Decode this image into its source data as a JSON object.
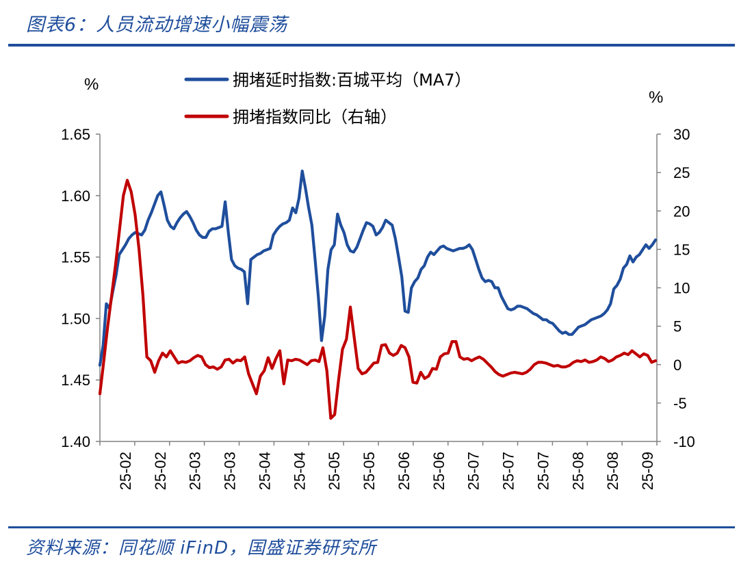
{
  "header": {
    "title": "图表6：人员流动增速小幅震荡"
  },
  "footer": {
    "source": "资料来源：同花顺 iFinD，国盛证券研究所"
  },
  "chart_data": {
    "type": "line",
    "left_unit": "%",
    "right_unit": "%",
    "ylim_left": [
      1.4,
      1.65
    ],
    "ylim_right": [
      -10,
      30
    ],
    "yticks_left": [
      "1.65",
      "1.60",
      "1.55",
      "1.50",
      "1.45",
      "1.40"
    ],
    "yticks_right": [
      "30",
      "25",
      "20",
      "15",
      "10",
      "5",
      "0",
      "-5",
      "-10"
    ],
    "xticks": [
      "25-02",
      "25-02",
      "25-03",
      "25-03",
      "25-04",
      "25-04",
      "25-05",
      "25-05",
      "25-06",
      "25-06",
      "25-07",
      "25-07",
      "25-07",
      "25-08",
      "25-08",
      "25-09"
    ],
    "colors": {
      "series1": "#1f4e9c",
      "series2": "#c00000"
    },
    "series": [
      {
        "name": "拥堵延时指数:百城平均（MA7）",
        "axis": "left",
        "color": "#1f4e9c",
        "values": [
          1.462,
          1.478,
          1.512,
          1.508,
          1.522,
          1.535,
          1.552,
          1.556,
          1.56,
          1.565,
          1.568,
          1.57,
          1.569,
          1.568,
          1.572,
          1.58,
          1.586,
          1.593,
          1.6,
          1.603,
          1.592,
          1.58,
          1.575,
          1.573,
          1.578,
          1.582,
          1.585,
          1.587,
          1.583,
          1.578,
          1.572,
          1.568,
          1.566,
          1.566,
          1.571,
          1.573,
          1.573,
          1.574,
          1.575,
          1.595,
          1.57,
          1.548,
          1.543,
          1.541,
          1.54,
          1.538,
          1.512,
          1.548,
          1.55,
          1.552,
          1.553,
          1.555,
          1.556,
          1.557,
          1.568,
          1.572,
          1.575,
          1.577,
          1.578,
          1.58,
          1.59,
          1.586,
          1.598,
          1.62,
          1.606,
          1.59,
          1.576,
          1.548,
          1.518,
          1.482,
          1.502,
          1.54,
          1.556,
          1.56,
          1.585,
          1.576,
          1.57,
          1.56,
          1.555,
          1.554,
          1.558,
          1.565,
          1.572,
          1.578,
          1.577,
          1.575,
          1.568,
          1.57,
          1.574,
          1.58,
          1.578,
          1.576,
          1.565,
          1.55,
          1.534,
          1.506,
          1.505,
          1.525,
          1.53,
          1.533,
          1.54,
          1.543,
          1.55,
          1.554,
          1.552,
          1.555,
          1.558,
          1.559,
          1.557,
          1.556,
          1.555,
          1.556,
          1.557,
          1.557,
          1.558,
          1.56,
          1.556,
          1.548,
          1.54,
          1.533,
          1.53,
          1.531,
          1.53,
          1.525,
          1.525,
          1.518,
          1.513,
          1.508,
          1.507,
          1.508,
          1.51,
          1.51,
          1.509,
          1.508,
          1.506,
          1.504,
          1.503,
          1.501,
          1.499,
          1.499,
          1.497,
          1.496,
          1.493,
          1.49,
          1.488,
          1.489,
          1.487,
          1.487,
          1.49,
          1.493,
          1.494,
          1.495,
          1.497,
          1.499,
          1.5,
          1.501,
          1.502,
          1.504,
          1.507,
          1.512,
          1.524,
          1.527,
          1.532,
          1.541,
          1.544,
          1.551,
          1.546,
          1.55,
          1.552,
          1.556,
          1.56,
          1.557,
          1.56,
          1.564
        ]
      },
      {
        "name": "拥堵指数同比（右轴）",
        "axis": "right",
        "color": "#c00000",
        "values": [
          -3.8,
          0.5,
          5.0,
          9.0,
          13.0,
          17.5,
          22.0,
          24.0,
          22.5,
          19.5,
          15.0,
          9.0,
          1.0,
          0.5,
          -1.0,
          0.5,
          1.5,
          1.0,
          1.8,
          1.0,
          0.2,
          0.4,
          0.3,
          0.5,
          0.9,
          1.2,
          1.0,
          0.0,
          -0.4,
          -0.3,
          -0.6,
          -0.3,
          0.6,
          0.7,
          0.2,
          0.6,
          0.5,
          1.0,
          -1.2,
          -2.5,
          -3.8,
          -1.5,
          -0.8,
          0.9,
          -0.5,
          0.8,
          1.8,
          -2.5,
          0.6,
          0.5,
          0.7,
          0.6,
          0.3,
          0.0,
          0.5,
          0.6,
          0.4,
          2.2,
          -0.8,
          -7.0,
          -6.5,
          -2.0,
          2.0,
          3.3,
          7.5,
          3.5,
          -0.5,
          -1.2,
          -1.0,
          -0.4,
          0.2,
          0.3,
          2.5,
          2.6,
          1.5,
          1.2,
          1.5,
          2.5,
          2.2,
          1.0,
          -2.3,
          -2.4,
          -1.0,
          -1.8,
          -1.5,
          -0.5,
          -0.6,
          1.0,
          1.4,
          1.5,
          3.0,
          3.0,
          1.0,
          0.7,
          0.8,
          0.5,
          0.8,
          1.0,
          0.7,
          0.2,
          -0.3,
          -0.9,
          -1.3,
          -1.5,
          -1.3,
          -1.1,
          -1.0,
          -1.1,
          -1.2,
          -1.0,
          -0.6,
          0.0,
          0.3,
          0.3,
          0.2,
          0.0,
          -0.2,
          -0.1,
          -0.3,
          -0.3,
          -0.1,
          0.3,
          0.5,
          0.4,
          0.6,
          0.3,
          0.4,
          0.6,
          1.0,
          0.8,
          0.4,
          0.6,
          1.0,
          1.2,
          1.5,
          1.3,
          1.8,
          1.4,
          1.0,
          1.4,
          1.2,
          0.3,
          0.5
        ]
      }
    ]
  }
}
